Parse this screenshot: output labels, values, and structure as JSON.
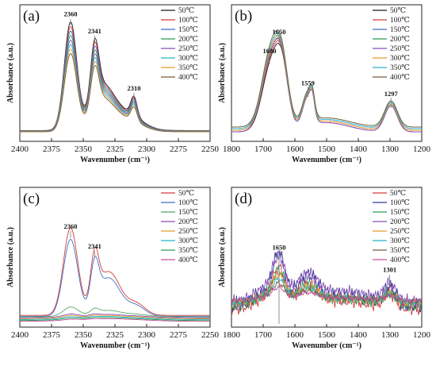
{
  "chart_data": [
    {
      "type": "line",
      "panel_label": "(a)",
      "xlabel": "Wavenumber (cm⁻¹)",
      "ylabel": "Absorbance (a.u.)",
      "xlim": [
        2400,
        2250
      ],
      "xticks": [
        2400,
        2375,
        2350,
        2325,
        2300,
        2275,
        2250
      ],
      "legend_position": "top-right",
      "annotations": [
        {
          "text": "2360",
          "x": 2360
        },
        {
          "text": "2341",
          "x": 2341
        },
        {
          "text": "2310",
          "x": 2310
        }
      ],
      "series": [
        {
          "name": "50℃",
          "color": "#1a1a1a",
          "amp": 1.0
        },
        {
          "name": "100℃",
          "color": "#d63b3b",
          "amp": 0.96
        },
        {
          "name": "150℃",
          "color": "#3c6fc4",
          "amp": 0.92
        },
        {
          "name": "200℃",
          "color": "#2e9e52",
          "amp": 0.88
        },
        {
          "name": "250℃",
          "color": "#8e4bb8",
          "amp": 0.84
        },
        {
          "name": "300℃",
          "color": "#27b5c8",
          "amp": 0.8
        },
        {
          "name": "350℃",
          "color": "#e39a2d",
          "amp": 0.76
        },
        {
          "name": "400℃",
          "color": "#7a5a3c",
          "amp": 0.72
        }
      ]
    },
    {
      "type": "line",
      "panel_label": "(b)",
      "xlabel": "Wavenumber (cm⁻¹)",
      "ylabel": "Absorbance (a.u.)",
      "xlim": [
        1800,
        1200
      ],
      "xticks": [
        1800,
        1700,
        1600,
        1500,
        1400,
        1300,
        1200
      ],
      "legend_position": "top-right",
      "annotations": [
        {
          "text": "1680",
          "x": 1680
        },
        {
          "text": "1650",
          "x": 1650
        },
        {
          "text": "1559",
          "x": 1559
        },
        {
          "text": "1297",
          "x": 1297
        }
      ],
      "series": [
        {
          "name": "50℃",
          "color": "#1a1a1a"
        },
        {
          "name": "100℃",
          "color": "#d63b3b"
        },
        {
          "name": "150℃",
          "color": "#3c6fc4"
        },
        {
          "name": "200℃",
          "color": "#2e9e52"
        },
        {
          "name": "250℃",
          "color": "#8e4bb8"
        },
        {
          "name": "300℃",
          "color": "#e39a2d"
        },
        {
          "name": "350℃",
          "color": "#27b5c8"
        },
        {
          "name": "400℃",
          "color": "#7a5a3c"
        }
      ]
    },
    {
      "type": "line",
      "panel_label": "(c)",
      "xlabel": "Wavenumber (cm⁻¹)",
      "ylabel": "Absorbance (a.u.)",
      "xlim": [
        2400,
        2250
      ],
      "xticks": [
        2400,
        2375,
        2350,
        2325,
        2300,
        2275,
        2250
      ],
      "legend_position": "top-right",
      "annotations": [
        {
          "text": "2360",
          "x": 2360
        },
        {
          "text": "2341",
          "x": 2341
        }
      ],
      "series": [
        {
          "name": "50℃",
          "color": "#d63b3b",
          "amp": 1.0
        },
        {
          "name": "100℃",
          "color": "#3c6fc4",
          "amp": 0.88
        },
        {
          "name": "150℃",
          "color": "#55a868",
          "amp": 0.1
        },
        {
          "name": "200℃",
          "color": "#8e4bb8",
          "amp": 0.03
        },
        {
          "name": "250℃",
          "color": "#e39a2d",
          "amp": 0.025
        },
        {
          "name": "300℃",
          "color": "#27b5c8",
          "amp": 0.02
        },
        {
          "name": "350℃",
          "color": "#2e9e52",
          "amp": 0.015
        },
        {
          "name": "400℃",
          "color": "#c94fa0",
          "amp": 0.01
        }
      ]
    },
    {
      "type": "line",
      "panel_label": "(d)",
      "xlabel": "Wavenumber (cm⁻¹)",
      "ylabel": "Absorbance (a.u.)",
      "xlim": [
        1800,
        1200
      ],
      "xticks": [
        1800,
        1700,
        1600,
        1500,
        1400,
        1300,
        1200
      ],
      "legend_position": "top-right",
      "annotations": [
        {
          "text": "1650",
          "x": 1650
        },
        {
          "text": "1301",
          "x": 1301
        }
      ],
      "series": [
        {
          "name": "50℃",
          "color": "#d63b3b",
          "amp": 0.8
        },
        {
          "name": "100℃",
          "color": "#2f3d8f",
          "amp": 1.0
        },
        {
          "name": "150℃",
          "color": "#2e9e52",
          "amp": 0.7
        },
        {
          "name": "200℃",
          "color": "#8e4bb8",
          "amp": 0.92
        },
        {
          "name": "250℃",
          "color": "#e39a2d",
          "amp": 0.55
        },
        {
          "name": "300℃",
          "color": "#27b5c8",
          "amp": 0.45
        },
        {
          "name": "350℃",
          "color": "#7a5a3c",
          "amp": 0.35
        },
        {
          "name": "400℃",
          "color": "#c94fa0",
          "amp": 0.25
        }
      ]
    }
  ]
}
